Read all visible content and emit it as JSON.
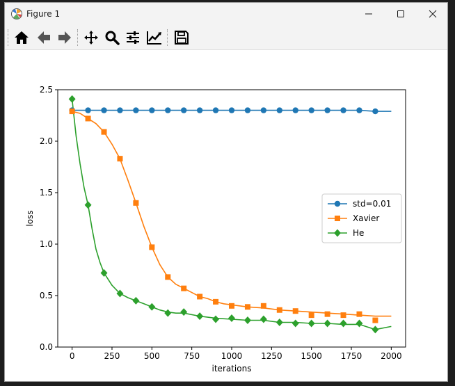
{
  "window": {
    "title": "Figure 1"
  },
  "toolbar": {
    "tools": [
      {
        "name": "home-icon"
      },
      {
        "name": "back-arrow-icon"
      },
      {
        "name": "forward-arrow-icon"
      },
      {
        "name": "pan-icon"
      },
      {
        "name": "zoom-icon"
      },
      {
        "name": "configure-subplots-icon"
      },
      {
        "name": "edit-axis-icon"
      },
      {
        "name": "save-icon"
      }
    ]
  },
  "colors": {
    "std": "#1f77b4",
    "xavier": "#ff7f0e",
    "he": "#2ca02c"
  },
  "chart_data": {
    "type": "line",
    "xlabel": "iterations",
    "ylabel": "loss",
    "xlim": [
      -90,
      2090
    ],
    "ylim": [
      0.0,
      2.5
    ],
    "xticks": [
      0,
      250,
      500,
      750,
      1000,
      1250,
      1500,
      1750,
      2000
    ],
    "yticks": [
      0.0,
      0.5,
      1.0,
      1.5,
      2.0,
      2.5
    ],
    "legend_position": "center-right",
    "series": [
      {
        "name": "std=0.01",
        "marker": "circle",
        "x": [
          0,
          100,
          200,
          300,
          400,
          500,
          600,
          700,
          800,
          900,
          1000,
          1100,
          1200,
          1300,
          1400,
          1500,
          1600,
          1700,
          1800,
          1900,
          2000
        ],
        "y": [
          2.3,
          2.3,
          2.3,
          2.3,
          2.3,
          2.3,
          2.3,
          2.3,
          2.3,
          2.3,
          2.3,
          2.3,
          2.3,
          2.3,
          2.3,
          2.3,
          2.3,
          2.3,
          2.3,
          2.29,
          2.29
        ],
        "marker_x": [
          0,
          100,
          200,
          300,
          400,
          500,
          600,
          700,
          800,
          900,
          1000,
          1100,
          1200,
          1300,
          1400,
          1500,
          1600,
          1700,
          1800,
          1900
        ],
        "marker_y": [
          2.3,
          2.3,
          2.3,
          2.3,
          2.3,
          2.3,
          2.3,
          2.3,
          2.3,
          2.3,
          2.3,
          2.3,
          2.3,
          2.3,
          2.3,
          2.3,
          2.3,
          2.3,
          2.3,
          2.29
        ]
      },
      {
        "name": "Xavier",
        "marker": "square",
        "x": [
          0,
          50,
          100,
          150,
          200,
          250,
          300,
          350,
          400,
          450,
          500,
          550,
          600,
          650,
          700,
          750,
          800,
          850,
          900,
          950,
          1000,
          1100,
          1200,
          1300,
          1400,
          1500,
          1600,
          1700,
          1800,
          1900,
          2000
        ],
        "y": [
          2.29,
          2.27,
          2.22,
          2.17,
          2.09,
          1.97,
          1.83,
          1.62,
          1.4,
          1.17,
          0.97,
          0.8,
          0.68,
          0.61,
          0.57,
          0.53,
          0.49,
          0.47,
          0.44,
          0.42,
          0.41,
          0.39,
          0.38,
          0.36,
          0.35,
          0.34,
          0.33,
          0.32,
          0.31,
          0.3,
          0.3
        ],
        "marker_x": [
          0,
          100,
          200,
          300,
          400,
          500,
          600,
          700,
          800,
          900,
          1000,
          1100,
          1200,
          1300,
          1400,
          1500,
          1600,
          1700,
          1800,
          1900
        ],
        "marker_y": [
          2.29,
          2.22,
          2.09,
          1.83,
          1.4,
          0.97,
          0.68,
          0.57,
          0.49,
          0.44,
          0.4,
          0.39,
          0.4,
          0.36,
          0.35,
          0.31,
          0.32,
          0.31,
          0.32,
          0.26
        ]
      },
      {
        "name": "He",
        "marker": "diamond",
        "x": [
          0,
          25,
          50,
          75,
          100,
          125,
          150,
          175,
          200,
          250,
          300,
          350,
          400,
          450,
          500,
          550,
          600,
          650,
          700,
          800,
          900,
          1000,
          1100,
          1200,
          1300,
          1400,
          1500,
          1600,
          1700,
          1800,
          1900,
          2000
        ],
        "y": [
          2.41,
          2.05,
          1.78,
          1.55,
          1.38,
          1.15,
          0.95,
          0.82,
          0.72,
          0.6,
          0.52,
          0.48,
          0.45,
          0.42,
          0.39,
          0.36,
          0.34,
          0.33,
          0.33,
          0.3,
          0.28,
          0.27,
          0.26,
          0.26,
          0.24,
          0.24,
          0.23,
          0.23,
          0.22,
          0.22,
          0.17,
          0.2
        ],
        "marker_x": [
          0,
          100,
          200,
          300,
          400,
          500,
          600,
          700,
          800,
          900,
          1000,
          1100,
          1200,
          1300,
          1400,
          1500,
          1600,
          1700,
          1800,
          1900
        ],
        "marker_y": [
          2.41,
          1.38,
          0.72,
          0.52,
          0.45,
          0.39,
          0.33,
          0.34,
          0.3,
          0.27,
          0.28,
          0.26,
          0.27,
          0.24,
          0.23,
          0.23,
          0.23,
          0.23,
          0.23,
          0.17
        ]
      }
    ]
  }
}
